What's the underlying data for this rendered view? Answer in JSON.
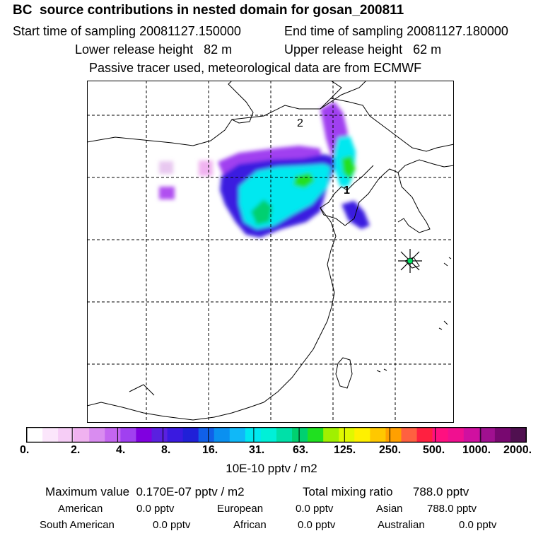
{
  "header": {
    "title": "BC  source contributions in nested domain for gosan_200811",
    "start_label": "Start time of sampling 20081127.150000",
    "end_label": "End time of sampling 20081127.180000",
    "lower_label": "Lower release height   82 m",
    "upper_label": "Upper release height   62 m",
    "note": "Passive tracer used, meteorological data are from ECMWF"
  },
  "map": {
    "markers": [
      {
        "label": "2"
      },
      {
        "label": "1"
      }
    ],
    "receptor": "star-icon"
  },
  "legend": {
    "colors": [
      "#ffffff",
      "#fbe6fb",
      "#f6cdf6",
      "#f0b2f0",
      "#d98cf0",
      "#c466f0",
      "#a040f0",
      "#8000e0",
      "#5a20e0",
      "#3a1ae0",
      "#2020d8",
      "#1060e8",
      "#0a90f0",
      "#10b8f8",
      "#00e8f0",
      "#00f0d8",
      "#00e0a8",
      "#00d070",
      "#20e020",
      "#a0f000",
      "#e0f800",
      "#fff000",
      "#ffc800",
      "#ffa000",
      "#ff6040",
      "#ff2040",
      "#ff1080",
      "#f01090",
      "#d010a0",
      "#a01090",
      "#780870",
      "#501050"
    ],
    "tick_labels": [
      "0.",
      "2.",
      "4.",
      "8.",
      "16.",
      "31.",
      "63.",
      "125.",
      "250.",
      "500.",
      "1000.",
      "2000."
    ],
    "unit": "10E-10 pptv / m2"
  },
  "footer": {
    "maximum_value": "Maximum value  0.170E-07 pptv / m2",
    "total_mixing": "Total mixing ratio      788.0 pptv",
    "american": "American",
    "american_val": "0.0 pptv",
    "european": "European",
    "european_val": "0.0 pptv",
    "asian": "Asian",
    "asian_val": "788.0 pptv",
    "south_american": "South American",
    "south_american_val": "0.0 pptv",
    "african": "African",
    "african_val": "0.0 pptv",
    "australian": "Australian",
    "australian_val": "0.0 pptv"
  }
}
